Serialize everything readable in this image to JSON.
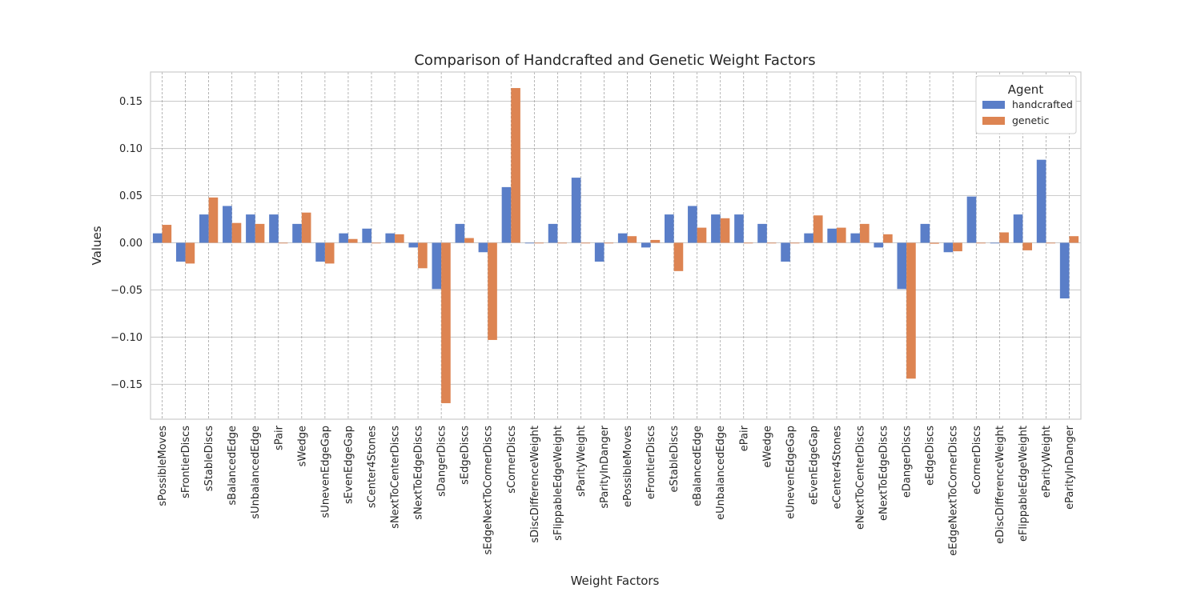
{
  "chart_data": {
    "type": "bar",
    "title": "Comparison of Handcrafted and Genetic Weight Factors",
    "xlabel": "Weight Factors",
    "ylabel": "Values",
    "ylim": [
      -0.187,
      0.181
    ],
    "yticks": [
      -0.15,
      -0.1,
      -0.05,
      0.0,
      0.05,
      0.1,
      0.15
    ],
    "ytick_labels": [
      "−0.15",
      "−0.10",
      "−0.05",
      "0.00",
      "0.05",
      "0.10",
      "0.15"
    ],
    "grid": true,
    "legend": {
      "title": "Agent",
      "placement": "top-right"
    },
    "categories": [
      "sPossibleMoves",
      "sFrontierDiscs",
      "sStableDiscs",
      "sBalancedEdge",
      "sUnbalancedEdge",
      "sPair",
      "sWedge",
      "sUnevenEdgeGap",
      "sEvenEdgeGap",
      "sCenter4Stones",
      "sNextToCenterDiscs",
      "sNextToEdgeDiscs",
      "sDangerDiscs",
      "sEdgeDiscs",
      "sEdgeNextToCornerDiscs",
      "sCornerDiscs",
      "sDiscDifferenceWeight",
      "sFlippableEdgeWeight",
      "sParityWeight",
      "sParityInDanger",
      "ePossibleMoves",
      "eFrontierDiscs",
      "eStableDiscs",
      "eBalancedEdge",
      "eUnbalancedEdge",
      "ePair",
      "eWedge",
      "eUnevenEdgeGap",
      "eEvenEdgeGap",
      "eCenter4Stones",
      "eNextToCenterDiscs",
      "eNextToEdgeDiscs",
      "eDangerDiscs",
      "eEdgeDiscs",
      "eEdgeNextToCornerDiscs",
      "eCornerDiscs",
      "eDiscDifferenceWeight",
      "eFlippableEdgeWeight",
      "eParityWeight",
      "eParityInDanger"
    ],
    "series": [
      {
        "name": "handcrafted",
        "color": "#5a7ec8",
        "values": [
          0.01,
          -0.02,
          0.03,
          0.039,
          0.03,
          0.03,
          0.02,
          -0.02,
          0.01,
          0.015,
          0.01,
          -0.005,
          -0.049,
          0.02,
          -0.01,
          0.059,
          0.0,
          0.02,
          0.069,
          -0.02,
          0.01,
          -0.005,
          0.03,
          0.039,
          0.03,
          0.03,
          0.02,
          -0.02,
          0.01,
          0.015,
          0.01,
          -0.005,
          -0.049,
          0.02,
          -0.01,
          0.049,
          0.0,
          0.03,
          0.088,
          -0.059
        ]
      },
      {
        "name": "genetic",
        "color": "#dd8452",
        "values": [
          0.019,
          -0.022,
          0.048,
          0.021,
          0.02,
          0.0,
          0.032,
          -0.022,
          0.004,
          0.0,
          0.009,
          -0.027,
          -0.17,
          0.005,
          -0.103,
          0.164,
          0.0,
          0.0,
          0.0,
          0.0,
          0.007,
          0.003,
          -0.03,
          0.016,
          0.026,
          0.0,
          0.0,
          0.0,
          0.029,
          0.016,
          0.02,
          0.009,
          -0.144,
          -0.001,
          -0.009,
          0.0,
          0.011,
          -0.008,
          0.0,
          0.007
        ]
      }
    ]
  }
}
